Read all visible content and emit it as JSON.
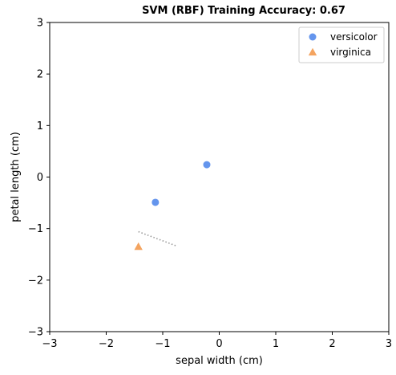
{
  "chart_data": {
    "type": "scatter",
    "title": "SVM (RBF) Training Accuracy: 0.67",
    "xlabel": "sepal width (cm)",
    "ylabel": "petal length (cm)",
    "xlim": [
      -3,
      3
    ],
    "ylim": [
      -3,
      3
    ],
    "xticks": [
      -3,
      -2,
      -1,
      0,
      1,
      2,
      3
    ],
    "yticks": [
      -3,
      -2,
      -1,
      0,
      1,
      2,
      3
    ],
    "xtick_labels": [
      "−3",
      "−2",
      "−1",
      "0",
      "1",
      "2",
      "3"
    ],
    "ytick_labels": [
      "−3",
      "−2",
      "−1",
      "0",
      "1",
      "2",
      "3"
    ],
    "grid": false,
    "legend_position": "top-right",
    "series": [
      {
        "name": "versicolor",
        "marker": "circle",
        "color": "#6495ED",
        "points": [
          {
            "x": -0.22,
            "y": 0.24
          },
          {
            "x": -1.13,
            "y": -0.49
          }
        ]
      },
      {
        "name": "virginica",
        "marker": "triangle",
        "color": "#F4A460",
        "points": [
          {
            "x": -1.43,
            "y": -1.35
          }
        ]
      }
    ],
    "decision_boundary": {
      "style": "dotted",
      "color": "#999999",
      "points": [
        {
          "x": -1.43,
          "y": -1.06
        },
        {
          "x": -0.75,
          "y": -1.34
        }
      ]
    }
  }
}
